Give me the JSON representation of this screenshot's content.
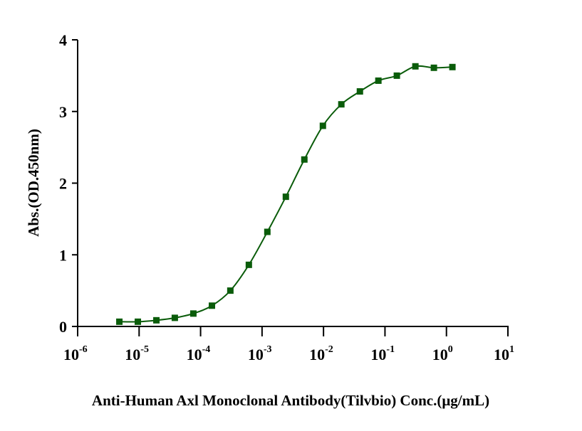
{
  "chart_data": {
    "type": "scatter",
    "title": "",
    "xlabel": "Anti-Human Axl Monoclonal Antibody(Tilvbio) Conc.(μg/mL)",
    "ylabel": "Abs.(OD.450nm)",
    "xscale": "log10",
    "xlim": [
      1e-06,
      10
    ],
    "ylim": [
      0,
      4
    ],
    "x_ticks": [
      {
        "base": "10",
        "exp": "-6",
        "value": 1e-06
      },
      {
        "base": "10",
        "exp": "-5",
        "value": 1e-05
      },
      {
        "base": "10",
        "exp": "-4",
        "value": 0.0001
      },
      {
        "base": "10",
        "exp": "-3",
        "value": 0.001
      },
      {
        "base": "10",
        "exp": "-2",
        "value": 0.01
      },
      {
        "base": "10",
        "exp": "-1",
        "value": 0.1
      },
      {
        "base": "10",
        "exp": "0",
        "value": 1
      },
      {
        "base": "10",
        "exp": "1",
        "value": 10
      }
    ],
    "y_ticks": [
      "0",
      "1",
      "2",
      "3",
      "4"
    ],
    "grid": false,
    "series": [
      {
        "name": "Anti-Human Axl Monoclonal Antibody",
        "color": "#0a5c0a",
        "marker": "square",
        "fit": "4PL sigmoid",
        "x": [
          4.77e-06,
          9.54e-06,
          1.91e-05,
          3.81e-05,
          7.63e-05,
          0.000153,
          0.000305,
          0.00061,
          0.00122,
          0.00244,
          0.00488,
          0.00977,
          0.0195,
          0.0391,
          0.0781,
          0.156,
          0.3125,
          0.625,
          1.25
        ],
        "y": [
          0.066,
          0.066,
          0.086,
          0.12,
          0.18,
          0.29,
          0.5,
          0.86,
          1.32,
          1.81,
          2.33,
          2.8,
          3.1,
          3.28,
          3.43,
          3.5,
          3.63,
          3.61,
          3.62
        ]
      }
    ]
  }
}
